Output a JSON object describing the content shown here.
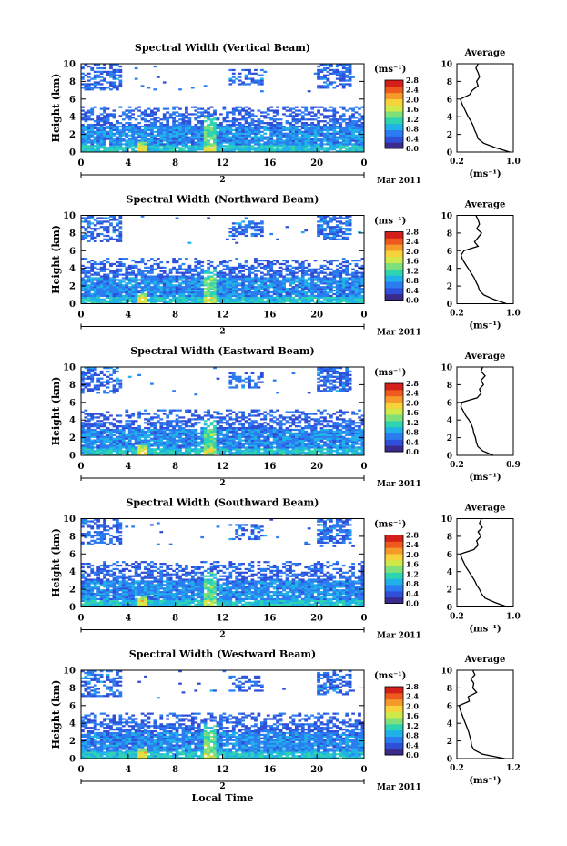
{
  "figure": {
    "ylabel": "Height (km)",
    "date_label": "Mar 2011",
    "xlabel": "Local Time",
    "colorbar_unit": "(ms⁻¹)",
    "colorbar_ticks": [
      "0.0",
      "0.4",
      "0.8",
      "1.2",
      "1.6",
      "2.0",
      "2.4",
      "2.8"
    ],
    "x_ticks": [
      "0",
      "4",
      "8",
      "12",
      "16",
      "20",
      "0"
    ],
    "y_ticks": [
      "0",
      "2",
      "4",
      "6",
      "8",
      "10"
    ],
    "avg_title": "Average",
    "avg_xlabel": "(ms⁻¹)",
    "colorscale": [
      "#3a2a8c",
      "#2f4fd8",
      "#2a7cf0",
      "#1fb1e8",
      "#2ed3b0",
      "#7ee07a",
      "#cfe84a",
      "#f7d23a",
      "#f59a2a",
      "#ee5a1e",
      "#d41f1a"
    ]
  },
  "chart_data": [
    {
      "type": "heatmap",
      "title": "Spectral Width (Vertical Beam)",
      "day": "2",
      "xlim": [
        0,
        24
      ],
      "ylim": [
        0,
        10
      ],
      "zlim": [
        0,
        2.8
      ],
      "average_profile": {
        "xlim": [
          0.2,
          1.0
        ],
        "x_ticks": [
          "0.2",
          "1.0"
        ],
        "heights": [
          0,
          0.5,
          1,
          1.5,
          2,
          2.5,
          3,
          3.5,
          4,
          4.5,
          5,
          5.5,
          6,
          6.5,
          7,
          7.5,
          8,
          8.5,
          9,
          9.5,
          10
        ],
        "values": [
          0.95,
          0.75,
          0.58,
          0.5,
          0.48,
          0.45,
          0.43,
          0.4,
          0.36,
          0.33,
          0.3,
          0.27,
          0.25,
          0.38,
          0.42,
          0.5,
          0.48,
          0.52,
          0.5,
          0.47,
          0.5
        ]
      }
    },
    {
      "type": "heatmap",
      "title": "Spectral Width (Northward Beam)",
      "day": "2",
      "xlim": [
        0,
        24
      ],
      "ylim": [
        0,
        10
      ],
      "zlim": [
        0,
        2.8
      ],
      "average_profile": {
        "xlim": [
          0.2,
          1.0
        ],
        "x_ticks": [
          "0.2",
          "1.0"
        ],
        "heights": [
          0,
          0.5,
          1,
          1.5,
          2,
          2.5,
          3,
          3.5,
          4,
          4.5,
          5,
          5.5,
          6,
          6.5,
          7,
          7.5,
          8,
          8.5,
          9,
          9.5,
          10
        ],
        "values": [
          0.9,
          0.72,
          0.58,
          0.52,
          0.5,
          0.47,
          0.44,
          0.4,
          0.36,
          0.32,
          0.28,
          0.26,
          0.3,
          0.5,
          0.45,
          0.5,
          0.55,
          0.48,
          0.52,
          0.5,
          0.47
        ]
      }
    },
    {
      "type": "heatmap",
      "title": "Spectral Width (Eastward Beam)",
      "day": "2",
      "xlim": [
        0,
        24
      ],
      "ylim": [
        0,
        10
      ],
      "zlim": [
        0,
        2.8
      ],
      "average_profile": {
        "xlim": [
          0.2,
          0.9
        ],
        "x_ticks": [
          "0.2",
          "0.9"
        ],
        "heights": [
          0,
          0.5,
          1,
          1.5,
          2,
          2.5,
          3,
          3.5,
          4,
          4.5,
          5,
          5.5,
          6,
          6.5,
          7,
          7.5,
          8,
          8.5,
          9,
          9.5,
          10
        ],
        "values": [
          0.65,
          0.52,
          0.46,
          0.44,
          0.43,
          0.41,
          0.4,
          0.38,
          0.35,
          0.31,
          0.28,
          0.25,
          0.26,
          0.45,
          0.5,
          0.48,
          0.53,
          0.5,
          0.55,
          0.5,
          0.52
        ]
      }
    },
    {
      "type": "heatmap",
      "title": "Spectral Width (Southward Beam)",
      "day": "2",
      "xlim": [
        0,
        24
      ],
      "ylim": [
        0,
        10
      ],
      "zlim": [
        0,
        2.8
      ],
      "average_profile": {
        "xlim": [
          0.2,
          1.0
        ],
        "x_ticks": [
          "0.2",
          "1.0"
        ],
        "heights": [
          0,
          0.5,
          1,
          1.5,
          2,
          2.5,
          3,
          3.5,
          4,
          4.5,
          5,
          5.5,
          6,
          6.5,
          7,
          7.5,
          8,
          8.5,
          9,
          9.5,
          10
        ],
        "values": [
          0.92,
          0.74,
          0.6,
          0.55,
          0.52,
          0.48,
          0.45,
          0.41,
          0.37,
          0.33,
          0.3,
          0.27,
          0.25,
          0.44,
          0.5,
          0.48,
          0.54,
          0.5,
          0.56,
          0.52,
          0.55
        ]
      }
    },
    {
      "type": "heatmap",
      "title": "Spectral Width (Westward Beam)",
      "day": "2",
      "xlim": [
        0,
        24
      ],
      "ylim": [
        0,
        10
      ],
      "zlim": [
        0,
        2.8
      ],
      "average_profile": {
        "xlim": [
          0.2,
          1.2
        ],
        "x_ticks": [
          "0.2",
          "1.2"
        ],
        "heights": [
          0,
          0.5,
          1,
          1.5,
          2,
          2.5,
          3,
          3.5,
          4,
          4.5,
          5,
          5.5,
          6,
          6.5,
          7,
          7.5,
          8,
          8.5,
          9,
          9.5,
          10
        ],
        "values": [
          1.05,
          0.65,
          0.5,
          0.46,
          0.45,
          0.43,
          0.41,
          0.38,
          0.35,
          0.32,
          0.29,
          0.26,
          0.24,
          0.42,
          0.4,
          0.55,
          0.48,
          0.5,
          0.45,
          0.52,
          0.48
        ]
      }
    }
  ]
}
